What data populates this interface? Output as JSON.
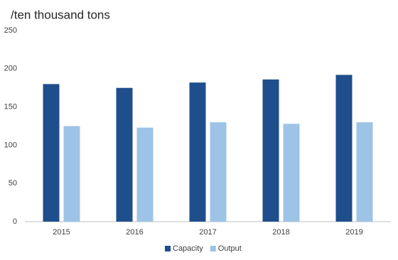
{
  "chart_data": {
    "type": "bar",
    "title": "/ten thousand tons",
    "categories": [
      "2015",
      "2016",
      "2017",
      "2018",
      "2019"
    ],
    "series": [
      {
        "name": "Capacity",
        "color": "#1f4e8c",
        "values": [
          180,
          175,
          182,
          186,
          192
        ]
      },
      {
        "name": "Output",
        "color": "#9dc3e6",
        "values": [
          125,
          123,
          130,
          128,
          130
        ]
      }
    ],
    "ylim": [
      0,
      250
    ],
    "yticks": [
      0,
      50,
      100,
      150,
      200,
      250
    ],
    "grid": false,
    "legend": "bottom"
  }
}
